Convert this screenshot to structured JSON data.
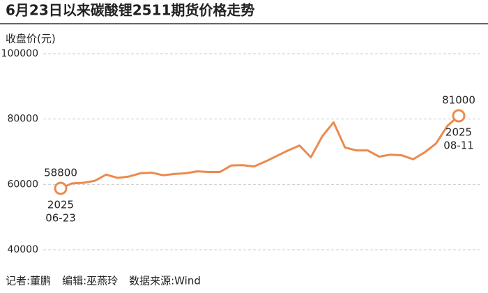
{
  "chart_data": {
    "type": "line",
    "title": "6月23日以来碳酸锂2511期货价格走势",
    "y_label": "收盘价(元)",
    "credits": [
      "记者:董鹏",
      "编辑:巫燕玲",
      "数据来源:Wind"
    ],
    "x_year": "2025",
    "categories": [
      "06-23",
      null,
      null,
      null,
      null,
      null,
      null,
      null,
      null,
      null,
      null,
      null,
      null,
      null,
      null,
      null,
      null,
      null,
      null,
      null,
      null,
      null,
      null,
      null,
      null,
      null,
      null,
      null,
      null,
      null,
      null,
      null,
      null,
      null,
      null,
      "08-11"
    ],
    "series": [
      {
        "name": "碳酸锂2511",
        "color": "#ec8a4d",
        "values": [
          58800,
          60300,
          60500,
          61100,
          63000,
          62000,
          62400,
          63400,
          63600,
          62800,
          63200,
          63400,
          64000,
          63800,
          63800,
          65800,
          65900,
          65500,
          67000,
          68700,
          70400,
          71900,
          68300,
          74700,
          79000,
          71300,
          70400,
          70400,
          68500,
          69100,
          68900,
          67700,
          69800,
          72500,
          77900,
          81000
        ]
      }
    ],
    "ylim": [
      40000,
      100000
    ],
    "yticks": [
      40000,
      60000,
      80000,
      100000
    ],
    "grid": true
  }
}
